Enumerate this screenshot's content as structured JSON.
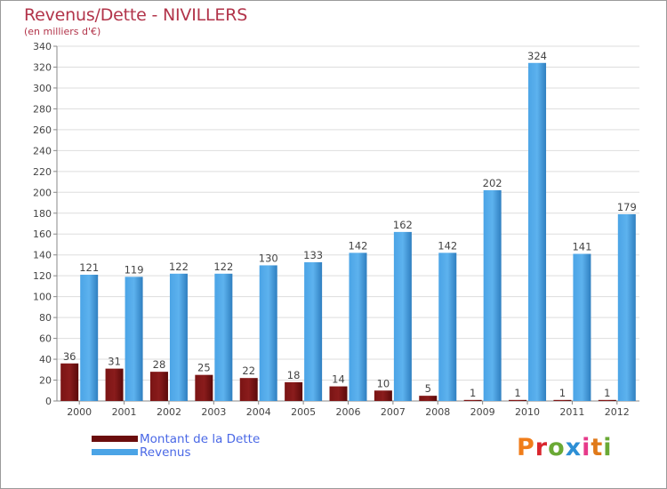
{
  "title": "Revenus/Dette - NIVILLERS",
  "subtitle": "(en milliers d'€)",
  "chart_data": {
    "type": "bar",
    "categories": [
      "2000",
      "2001",
      "2002",
      "2003",
      "2004",
      "2005",
      "2006",
      "2007",
      "2008",
      "2009",
      "2010",
      "2011",
      "2012"
    ],
    "series": [
      {
        "name": "Montant de la Dette",
        "values": [
          36,
          31,
          28,
          25,
          22,
          18,
          14,
          10,
          5,
          1,
          1,
          1,
          1
        ]
      },
      {
        "name": "Revenus",
        "values": [
          121,
          119,
          122,
          122,
          130,
          133,
          142,
          162,
          142,
          202,
          324,
          141,
          179
        ]
      }
    ],
    "ylim": [
      0,
      340
    ],
    "yticks": [
      0,
      20,
      40,
      60,
      80,
      100,
      120,
      140,
      160,
      180,
      200,
      220,
      240,
      260,
      280,
      300,
      320,
      340
    ],
    "grid": true,
    "colors": {
      "dette": "#7a1212",
      "revenus": "#4ba4e6"
    }
  },
  "legend": {
    "items": [
      {
        "label": "Montant de la Dette",
        "color": "#6b0d0d"
      },
      {
        "label": "Revenus",
        "color": "#4ba4e6"
      }
    ]
  },
  "logo": {
    "text": "Proxiti",
    "colors": [
      "#f07d1a",
      "#d9262e",
      "#6aa935",
      "#2d8fd5",
      "#e63a8a",
      "#e07a1a",
      "#6aa935"
    ]
  }
}
